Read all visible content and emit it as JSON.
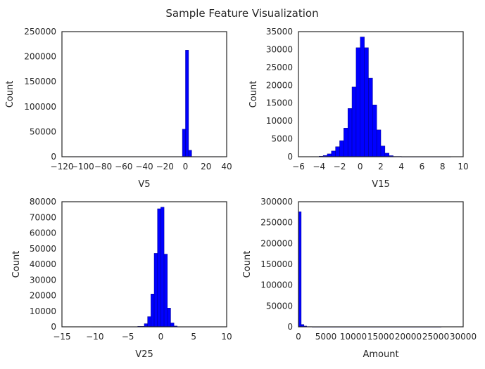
{
  "title": "Sample Feature Visualization",
  "chart_data": [
    {
      "type": "bar",
      "histogram": true,
      "xlabel": "V5",
      "ylabel": "Count",
      "xlim": [
        -120,
        40
      ],
      "ylim": [
        0,
        250000
      ],
      "xticks": [
        "−120",
        "−100",
        "−80",
        "−60",
        "−40",
        "−20",
        "0",
        "20",
        "40"
      ],
      "xtickvals": [
        -120,
        -100,
        -80,
        -60,
        -40,
        -20,
        0,
        20,
        40
      ],
      "yticks": [
        "0",
        "50000",
        "100000",
        "150000",
        "200000",
        "250000"
      ],
      "ytickvals": [
        0,
        50000,
        100000,
        150000,
        200000,
        250000
      ],
      "bins": [
        {
          "x0": -114,
          "x1": -3,
          "value": 300
        },
        {
          "x0": -3,
          "x1": 0,
          "value": 55000
        },
        {
          "x0": 0,
          "x1": 3,
          "value": 213000
        },
        {
          "x0": 3,
          "x1": 6,
          "value": 13000
        },
        {
          "x0": 6,
          "x1": 36,
          "value": 300
        }
      ]
    },
    {
      "type": "bar",
      "histogram": true,
      "xlabel": "V15",
      "ylabel": "Count",
      "xlim": [
        -6,
        10
      ],
      "ylim": [
        0,
        35000
      ],
      "xticks": [
        "−6",
        "−4",
        "−2",
        "0",
        "2",
        "4",
        "6",
        "8",
        "10"
      ],
      "xtickvals": [
        -6,
        -4,
        -2,
        0,
        2,
        4,
        6,
        8,
        10
      ],
      "yticks": [
        "0",
        "5000",
        "10000",
        "15000",
        "20000",
        "25000",
        "30000",
        "35000"
      ],
      "ytickvals": [
        0,
        5000,
        10000,
        15000,
        20000,
        25000,
        30000,
        35000
      ],
      "bins": [
        {
          "x0": -4.8,
          "x1": -4.0,
          "value": 50
        },
        {
          "x0": -4.0,
          "x1": -3.6,
          "value": 150
        },
        {
          "x0": -3.6,
          "x1": -3.2,
          "value": 350
        },
        {
          "x0": -3.2,
          "x1": -2.8,
          "value": 800
        },
        {
          "x0": -2.8,
          "x1": -2.4,
          "value": 1600
        },
        {
          "x0": -2.4,
          "x1": -2.0,
          "value": 2800
        },
        {
          "x0": -2.0,
          "x1": -1.6,
          "value": 4500
        },
        {
          "x0": -1.6,
          "x1": -1.2,
          "value": 8000
        },
        {
          "x0": -1.2,
          "x1": -0.8,
          "value": 13500
        },
        {
          "x0": -0.8,
          "x1": -0.4,
          "value": 19500
        },
        {
          "x0": -0.4,
          "x1": 0.0,
          "value": 30500
        },
        {
          "x0": 0.0,
          "x1": 0.4,
          "value": 33500
        },
        {
          "x0": 0.4,
          "x1": 0.8,
          "value": 30500
        },
        {
          "x0": 0.8,
          "x1": 1.2,
          "value": 22000
        },
        {
          "x0": 1.2,
          "x1": 1.6,
          "value": 14500
        },
        {
          "x0": 1.6,
          "x1": 2.0,
          "value": 7500
        },
        {
          "x0": 2.0,
          "x1": 2.4,
          "value": 3000
        },
        {
          "x0": 2.4,
          "x1": 2.8,
          "value": 1000
        },
        {
          "x0": 2.8,
          "x1": 3.2,
          "value": 300
        },
        {
          "x0": 3.2,
          "x1": 4.0,
          "value": 80
        },
        {
          "x0": 4.0,
          "x1": 8.8,
          "value": 20
        }
      ]
    },
    {
      "type": "bar",
      "histogram": true,
      "xlabel": "V25",
      "ylabel": "Count",
      "xlim": [
        -15,
        10
      ],
      "ylim": [
        0,
        80000
      ],
      "xticks": [
        "−15",
        "−10",
        "−5",
        "0",
        "5",
        "10"
      ],
      "xtickvals": [
        -15,
        -10,
        -5,
        0,
        5,
        10
      ],
      "yticks": [
        "0",
        "10000",
        "20000",
        "30000",
        "40000",
        "50000",
        "60000",
        "70000",
        "80000"
      ],
      "ytickvals": [
        0,
        10000,
        20000,
        30000,
        40000,
        50000,
        60000,
        70000,
        80000
      ],
      "bins": [
        {
          "x0": -10.5,
          "x1": -3.5,
          "value": 100
        },
        {
          "x0": -3.5,
          "x1": -2.5,
          "value": 300
        },
        {
          "x0": -2.5,
          "x1": -2.0,
          "value": 2000
        },
        {
          "x0": -2.0,
          "x1": -1.5,
          "value": 6500
        },
        {
          "x0": -1.5,
          "x1": -1.0,
          "value": 21000
        },
        {
          "x0": -1.0,
          "x1": -0.5,
          "value": 47000
        },
        {
          "x0": -0.5,
          "x1": 0.0,
          "value": 75500
        },
        {
          "x0": 0.0,
          "x1": 0.5,
          "value": 76500
        },
        {
          "x0": 0.5,
          "x1": 1.0,
          "value": 46500
        },
        {
          "x0": 1.0,
          "x1": 1.5,
          "value": 12000
        },
        {
          "x0": 1.5,
          "x1": 2.0,
          "value": 2500
        },
        {
          "x0": 2.0,
          "x1": 2.5,
          "value": 500
        },
        {
          "x0": 2.5,
          "x1": 7.5,
          "value": 80
        }
      ]
    },
    {
      "type": "bar",
      "histogram": true,
      "xlabel": "Amount",
      "ylabel": "Count",
      "xlim": [
        0,
        30000
      ],
      "ylim": [
        0,
        300000
      ],
      "xticks": [
        "0",
        "5000",
        "10000",
        "15000",
        "20000",
        "25000",
        "30000"
      ],
      "xtickvals": [
        0,
        5000,
        10000,
        15000,
        20000,
        25000,
        30000
      ],
      "yticks": [
        "0",
        "50000",
        "100000",
        "150000",
        "200000",
        "250000",
        "300000"
      ],
      "ytickvals": [
        0,
        50000,
        100000,
        150000,
        200000,
        250000,
        300000
      ],
      "bins": [
        {
          "x0": 0,
          "x1": 500,
          "value": 276000
        },
        {
          "x0": 500,
          "x1": 1000,
          "value": 5500
        },
        {
          "x0": 1000,
          "x1": 1500,
          "value": 1800
        },
        {
          "x0": 1500,
          "x1": 2500,
          "value": 500
        },
        {
          "x0": 2500,
          "x1": 26000,
          "value": 50
        }
      ]
    }
  ]
}
